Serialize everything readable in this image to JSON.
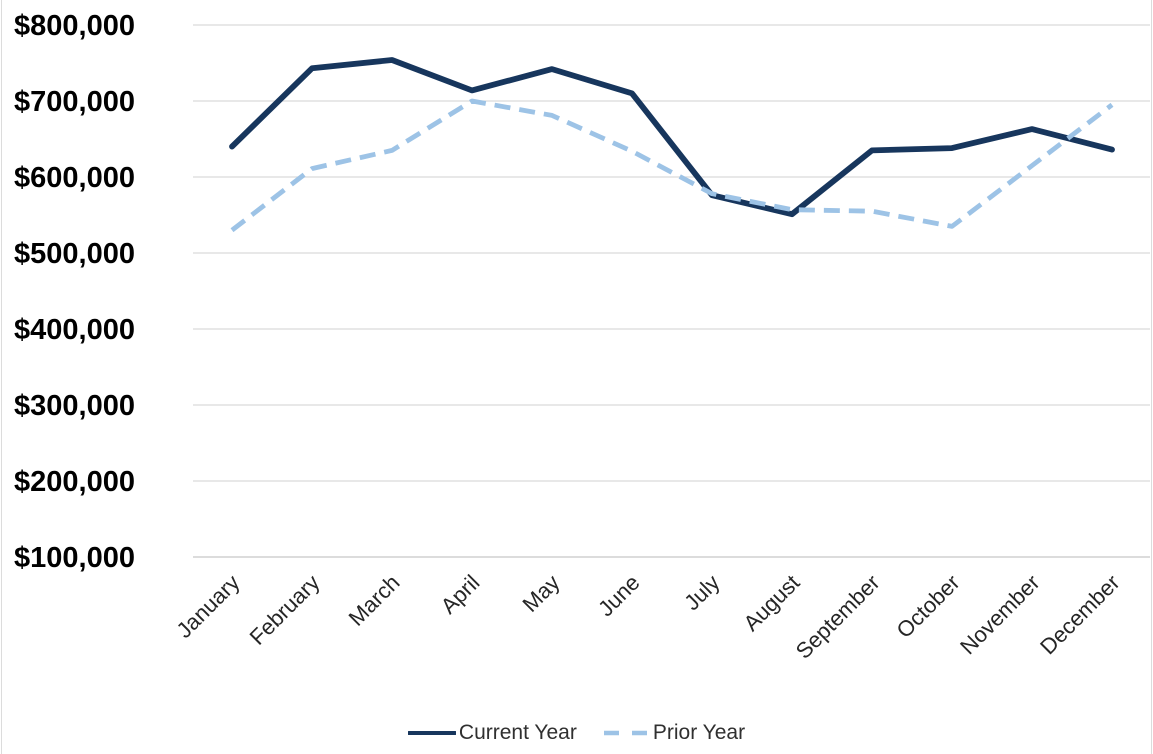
{
  "chart_data": {
    "type": "line",
    "title": "",
    "categories": [
      "January",
      "February",
      "March",
      "April",
      "May",
      "June",
      "July",
      "August",
      "September",
      "October",
      "November",
      "December"
    ],
    "series": [
      {
        "name": "Current Year",
        "style": "solid",
        "color": "#17365d",
        "values": [
          640000,
          743000,
          754000,
          714000,
          742000,
          710000,
          576000,
          551000,
          635000,
          638000,
          663000,
          636000
        ]
      },
      {
        "name": "Prior Year",
        "style": "dashed",
        "color": "#9dc3e6",
        "values": [
          530000,
          611000,
          635000,
          700000,
          681000,
          634000,
          578000,
          557000,
          555000,
          535000,
          615000,
          695000
        ]
      }
    ],
    "y_axis": {
      "min": 100000,
      "max": 800000,
      "step": 100000,
      "tick_labels": [
        "$100,000",
        "$200,000",
        "$300,000",
        "$400,000",
        "$500,000",
        "$600,000",
        "$700,000",
        "$800,000"
      ]
    },
    "x_axis": {
      "label_rotation_degrees": -45
    },
    "grid": true,
    "legend_position": "bottom",
    "colors": {
      "gridline": "#d9d9d9",
      "axis_line": "#c6c6c6",
      "y_tick_text": "#000000",
      "x_tick_text": "#262626",
      "legend_text": "#303030",
      "background": "#ffffff"
    }
  }
}
